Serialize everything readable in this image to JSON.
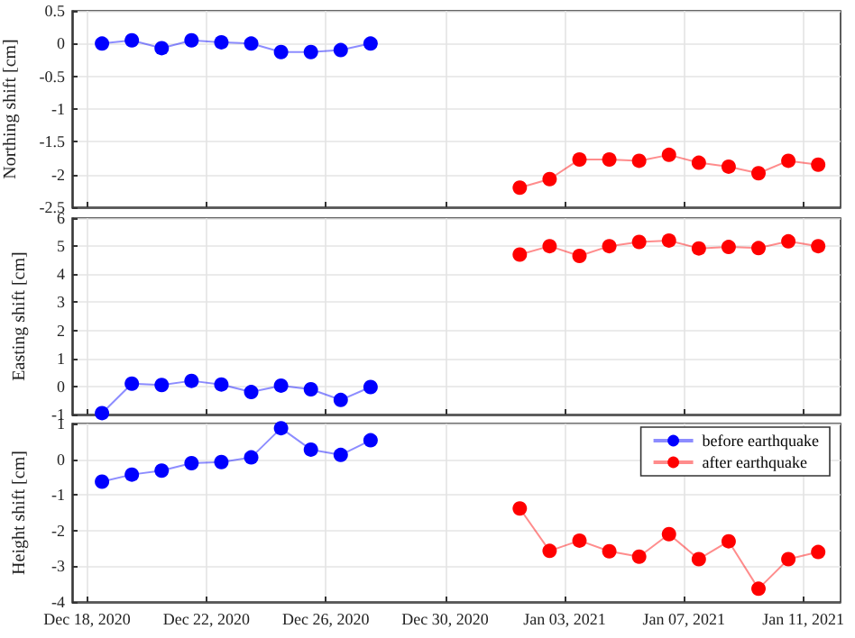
{
  "chart_data": [
    {
      "type": "line",
      "ylabel": "Northing shift [cm]",
      "xlim": [
        "2020-12-17T12:00",
        "2021-01-12T06:00"
      ],
      "ylim": [
        -2.5,
        0.5
      ],
      "yticks": [
        -2.5,
        -2,
        -1.5,
        -1,
        -0.5,
        0,
        0.5
      ],
      "xticks": [
        {
          "value": "2020-12-18",
          "label": null
        },
        {
          "value": "2020-12-22",
          "label": null
        },
        {
          "value": "2020-12-26",
          "label": null
        },
        {
          "value": "2020-12-30",
          "label": null
        },
        {
          "value": "2021-01-03",
          "label": null
        },
        {
          "value": "2021-01-07",
          "label": null
        },
        {
          "value": "2021-01-11",
          "label": null
        }
      ],
      "tick_labels": "y",
      "grid": true,
      "marker": "circle",
      "legend": false,
      "series": [
        {
          "color": "#0000ff",
          "x": [
            "2020-12-18T12:00",
            "2020-12-19T12:00",
            "2020-12-20T12:00",
            "2020-12-21T12:00",
            "2020-12-22T12:00",
            "2020-12-23T12:00",
            "2020-12-24T12:00",
            "2020-12-25T12:00",
            "2020-12-26T12:00",
            "2020-12-27T12:00"
          ],
          "values": [
            0,
            0.05,
            -0.07,
            0.05,
            0.02,
            0,
            -0.13,
            -0.13,
            -0.1,
            0
          ]
        },
        {
          "color": "#ff0000",
          "x": [
            "2021-01-01T12:00",
            "2021-01-02T12:00",
            "2021-01-03T12:00",
            "2021-01-04T12:00",
            "2021-01-05T12:00",
            "2021-01-06T12:00",
            "2021-01-07T12:00",
            "2021-01-08T12:00",
            "2021-01-09T12:00",
            "2021-01-10T12:00",
            "2021-01-11T12:00"
          ],
          "values": [
            -2.2,
            -2.07,
            -1.77,
            -1.77,
            -1.79,
            -1.7,
            -1.82,
            -1.88,
            -1.98,
            -1.79,
            -1.85
          ]
        }
      ]
    },
    {
      "type": "line",
      "ylabel": "Easting shift [cm]",
      "xlim": [
        "2020-12-17T12:00",
        "2021-01-12T06:00"
      ],
      "ylim": [
        -1,
        6
      ],
      "yticks": [
        -1,
        0,
        1,
        2,
        3,
        4,
        5,
        6
      ],
      "xticks": [
        {
          "value": "2020-12-18",
          "label": null
        },
        {
          "value": "2020-12-22",
          "label": null
        },
        {
          "value": "2020-12-26",
          "label": null
        },
        {
          "value": "2020-12-30",
          "label": null
        },
        {
          "value": "2021-01-03",
          "label": null
        },
        {
          "value": "2021-01-07",
          "label": null
        },
        {
          "value": "2021-01-11",
          "label": null
        }
      ],
      "tick_labels": "y",
      "grid": true,
      "marker": "circle",
      "legend": false,
      "series": [
        {
          "color": "#0000ff",
          "x": [
            "2020-12-18T12:00",
            "2020-12-19T12:00",
            "2020-12-20T12:00",
            "2020-12-21T12:00",
            "2020-12-22T12:00",
            "2020-12-23T12:00",
            "2020-12-24T12:00",
            "2020-12-25T12:00",
            "2020-12-26T12:00",
            "2020-12-27T12:00"
          ],
          "values": [
            -0.95,
            0.1,
            0.05,
            0.2,
            0.07,
            -0.2,
            0.03,
            -0.1,
            -0.48,
            -0.02
          ]
        },
        {
          "color": "#ff0000",
          "x": [
            "2021-01-01T12:00",
            "2021-01-02T12:00",
            "2021-01-03T12:00",
            "2021-01-04T12:00",
            "2021-01-05T12:00",
            "2021-01-06T12:00",
            "2021-01-07T12:00",
            "2021-01-08T12:00",
            "2021-01-09T12:00",
            "2021-01-10T12:00",
            "2021-01-11T12:00"
          ],
          "values": [
            4.7,
            5,
            4.65,
            5,
            5.15,
            5.2,
            4.92,
            4.97,
            4.93,
            5.17,
            5.0
          ]
        }
      ]
    },
    {
      "type": "line",
      "ylabel": "Height shift [cm]",
      "xlim": [
        "2020-12-17T12:00",
        "2021-01-12T06:00"
      ],
      "ylim": [
        -4,
        1
      ],
      "yticks": [
        -4,
        -3,
        -2,
        -1,
        0,
        1
      ],
      "xticks": [
        {
          "value": "2020-12-18",
          "label": "Dec 18, 2020"
        },
        {
          "value": "2020-12-22",
          "label": "Dec 22, 2020"
        },
        {
          "value": "2020-12-26",
          "label": "Dec 26, 2020"
        },
        {
          "value": "2020-12-30",
          "label": "Dec 30, 2020"
        },
        {
          "value": "2021-01-03",
          "label": "Jan 03, 2021"
        },
        {
          "value": "2021-01-07",
          "label": "Jan 07, 2021"
        },
        {
          "value": "2021-01-11",
          "label": "Jan 11, 2021"
        }
      ],
      "grid": true,
      "marker": "circle",
      "legend": "top right",
      "series": [
        {
          "name": "before earthquake",
          "color": "#0000ff",
          "x": [
            "2020-12-18T12:00",
            "2020-12-19T12:00",
            "2020-12-20T12:00",
            "2020-12-21T12:00",
            "2020-12-22T12:00",
            "2020-12-23T12:00",
            "2020-12-24T12:00",
            "2020-12-25T12:00",
            "2020-12-26T12:00",
            "2020-12-27T12:00"
          ],
          "values": [
            -0.63,
            -0.43,
            -0.32,
            -0.11,
            -0.08,
            0.05,
            0.87,
            0.27,
            0.12,
            0.53
          ]
        },
        {
          "name": "after earthquake",
          "color": "#ff0000",
          "x": [
            "2021-01-01T12:00",
            "2021-01-02T12:00",
            "2021-01-03T12:00",
            "2021-01-04T12:00",
            "2021-01-05T12:00",
            "2021-01-06T12:00",
            "2021-01-07T12:00",
            "2021-01-08T12:00",
            "2021-01-09T12:00",
            "2021-01-10T12:00",
            "2021-01-11T12:00"
          ],
          "values": [
            -1.38,
            -2.57,
            -2.28,
            -2.58,
            -2.73,
            -2.1,
            -2.8,
            -2.3,
            -3.63,
            -2.8,
            -2.6
          ]
        }
      ]
    }
  ]
}
